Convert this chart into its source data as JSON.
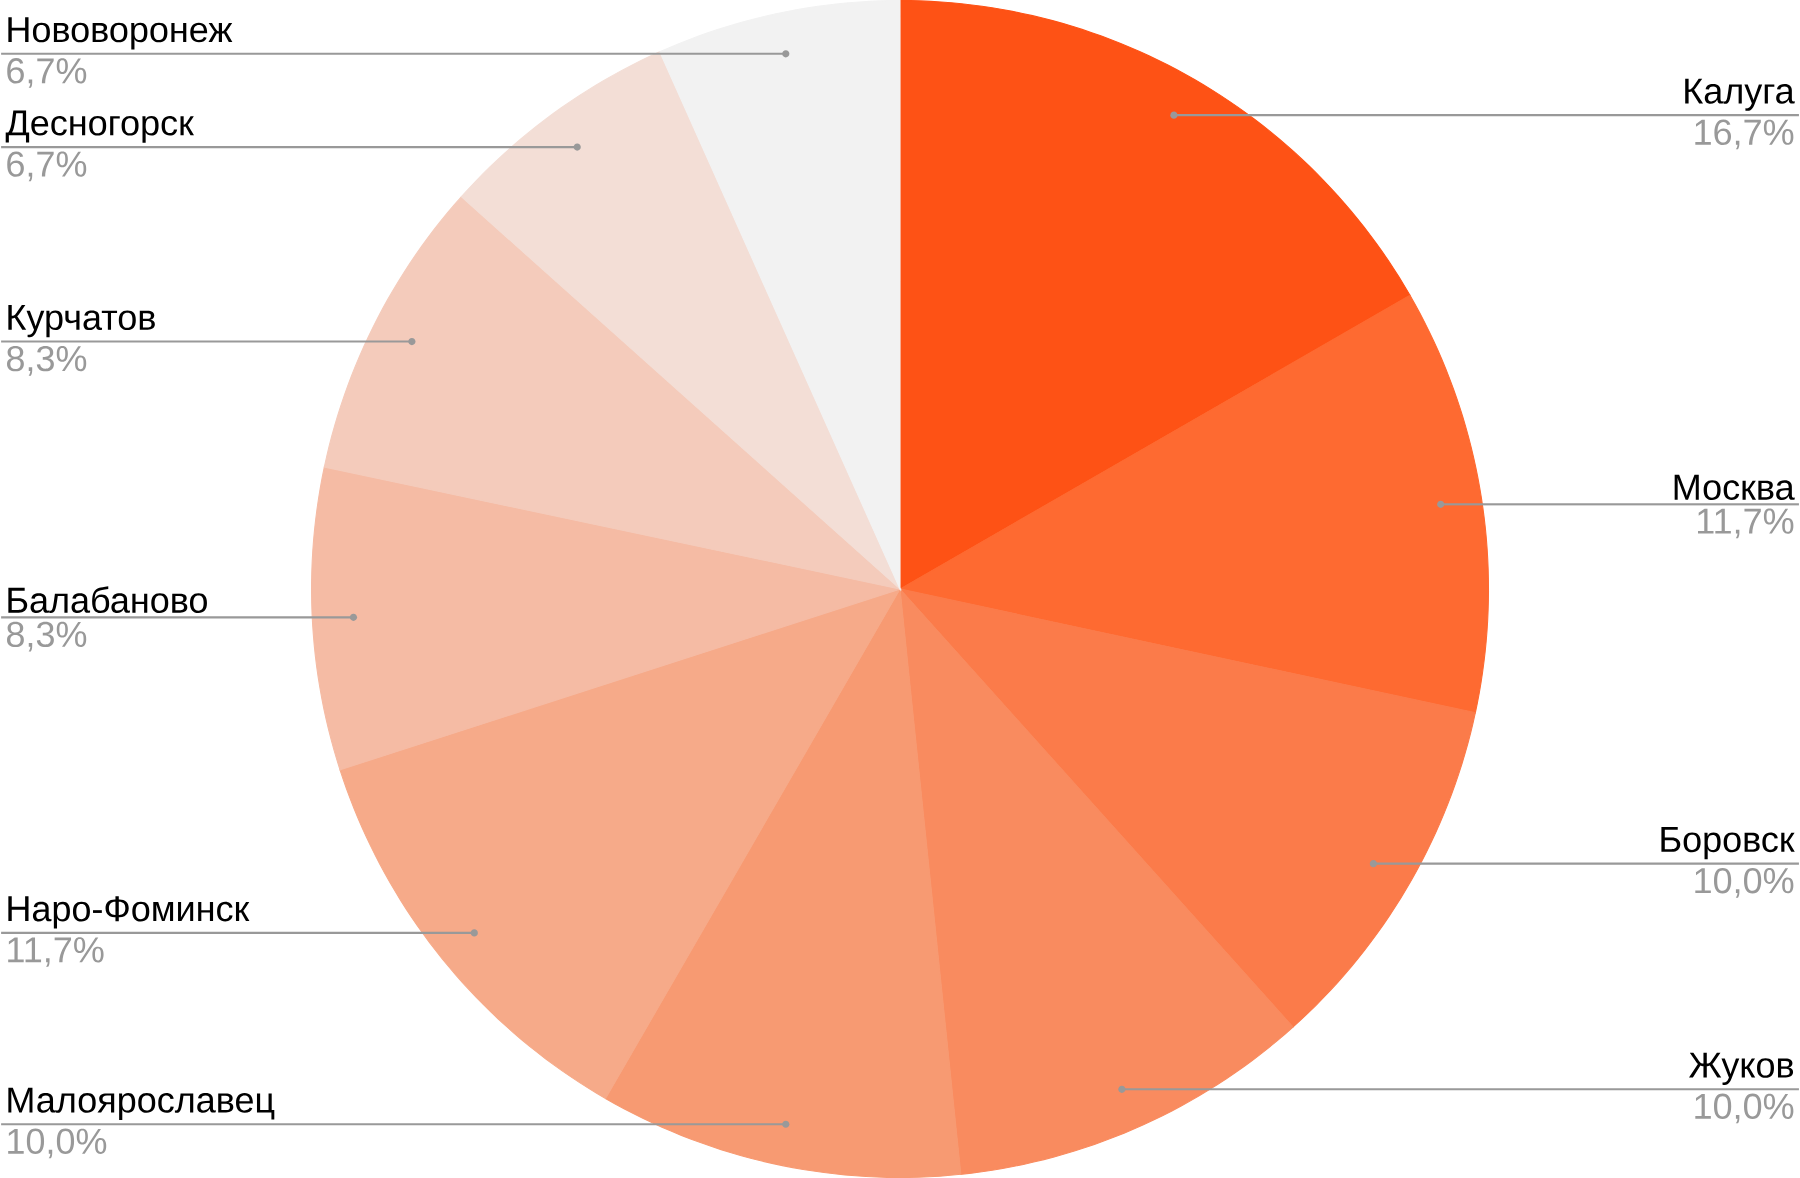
{
  "chart_data": {
    "type": "pie",
    "categories": [
      "Калуга",
      "Москва",
      "Боровск",
      "Жуков",
      "Малоярославец",
      "Наро-Фоминск",
      "Балабаново",
      "Курчатов",
      "Десногорск",
      "Нововоронеж"
    ],
    "values": [
      16.7,
      11.7,
      10.0,
      10.0,
      10.0,
      11.7,
      8.3,
      8.3,
      6.7,
      6.7
    ],
    "value_labels": [
      "16,7%",
      "11,7%",
      "10,0%",
      "10,0%",
      "10,0%",
      "11,7%",
      "8,3%",
      "8,3%",
      "6,7%",
      "6,7%"
    ],
    "colors": [
      "#fe5215",
      "#fe6a31",
      "#fb7b4a",
      "#f98b5f",
      "#f79a72",
      "#f6aa89",
      "#f5bba4",
      "#f4cbbb",
      "#f3ded6",
      "#f2f2f2"
    ]
  }
}
